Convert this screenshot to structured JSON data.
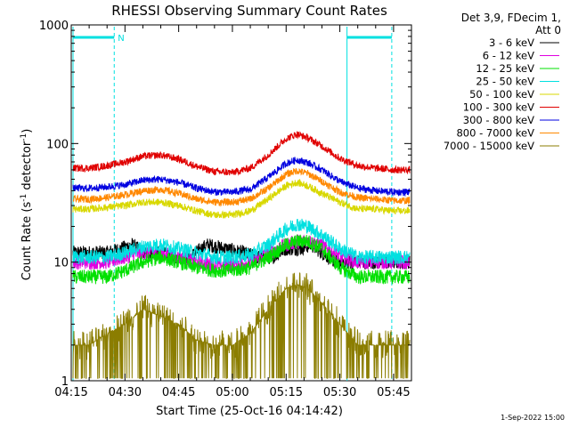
{
  "chart_data": {
    "type": "line",
    "title": "RHESSI Observing Summary Count Rates",
    "xlabel": "Start Time (25-Oct-16 04:14:42)",
    "ylabel": "Count Rate (s⁻¹ detector⁻¹)",
    "y_scale": "log",
    "ylim": [
      1,
      1000
    ],
    "xlim_minutes": [
      0,
      95
    ],
    "x_ticks": [
      {
        "label": "04:15",
        "minutes": 0
      },
      {
        "label": "04:30",
        "minutes": 15
      },
      {
        "label": "04:45",
        "minutes": 30
      },
      {
        "label": "05:00",
        "minutes": 45
      },
      {
        "label": "05:15",
        "minutes": 60
      },
      {
        "label": "05:30",
        "minutes": 75
      },
      {
        "label": "05:45",
        "minutes": 90
      }
    ],
    "y_ticks": [
      {
        "label": "1",
        "value": 1
      },
      {
        "label": "10",
        "value": 10
      },
      {
        "label": "100",
        "value": 100
      },
      {
        "label": "1000",
        "value": 1000
      }
    ],
    "info_lines": [
      "Det 3,9, FDecim 1,",
      "Att 0"
    ],
    "legend_position": "right",
    "series": [
      {
        "name": "3 - 6 keV",
        "color": "#000000",
        "x": [
          0,
          5,
          10,
          14,
          17,
          20,
          25,
          28,
          33,
          38,
          43,
          48,
          52,
          56,
          60,
          64,
          67,
          70,
          74,
          78,
          83,
          88,
          94
        ],
        "y": [
          12,
          12,
          12,
          13,
          14,
          12,
          12,
          11,
          11,
          14,
          13,
          12,
          11,
          11,
          13,
          13,
          14,
          12,
          10,
          10,
          10,
          10,
          10
        ]
      },
      {
        "name": "6 - 12 keV",
        "color": "#e000e0",
        "x": [
          0,
          5,
          10,
          15,
          20,
          25,
          30,
          35,
          40,
          45,
          50,
          55,
          60,
          63,
          66,
          70,
          75,
          80,
          85,
          90,
          94
        ],
        "y": [
          10,
          10,
          10,
          11,
          12,
          12,
          11,
          10,
          9.5,
          9.5,
          10,
          12,
          14,
          15,
          15,
          14,
          11,
          10,
          10,
          10,
          10
        ]
      },
      {
        "name": "12 - 25 keV",
        "color": "#00e000",
        "x": [
          0,
          5,
          10,
          15,
          20,
          25,
          30,
          35,
          40,
          45,
          50,
          55,
          60,
          63,
          66,
          70,
          75,
          80,
          85,
          90,
          94
        ],
        "y": [
          7.5,
          7.5,
          7.5,
          8.5,
          10,
          11,
          10,
          9,
          8.5,
          8.5,
          9,
          11,
          14,
          15,
          15,
          13,
          9,
          7.5,
          7.5,
          7.5,
          7.5
        ]
      },
      {
        "name": "25 - 50 keV",
        "color": "#00e0e0",
        "x": [
          0,
          5,
          10,
          15,
          20,
          25,
          30,
          35,
          40,
          45,
          50,
          55,
          60,
          63,
          66,
          70,
          75,
          80,
          85,
          90,
          94
        ],
        "y": [
          11,
          11,
          11,
          12,
          13.5,
          14,
          13,
          12,
          11,
          11,
          11.5,
          14,
          19,
          21,
          20,
          17,
          13,
          11,
          11,
          11,
          11
        ]
      },
      {
        "name": "50 - 100 keV",
        "color": "#d8d800",
        "x": [
          0,
          5,
          10,
          15,
          20,
          25,
          30,
          35,
          40,
          45,
          50,
          55,
          60,
          63,
          66,
          70,
          75,
          80,
          85,
          90,
          94
        ],
        "y": [
          28,
          28,
          29,
          30,
          32,
          32,
          30,
          27,
          25,
          25,
          27,
          34,
          44,
          47,
          44,
          38,
          32,
          28,
          28,
          27,
          27
        ]
      },
      {
        "name": "100 - 300 keV",
        "color": "#e00000",
        "x": [
          0,
          5,
          10,
          15,
          20,
          25,
          30,
          35,
          40,
          45,
          50,
          55,
          60,
          63,
          66,
          70,
          75,
          80,
          85,
          90,
          94
        ],
        "y": [
          62,
          62,
          65,
          70,
          78,
          80,
          74,
          64,
          58,
          57,
          62,
          80,
          110,
          120,
          112,
          95,
          75,
          65,
          62,
          60,
          60
        ]
      },
      {
        "name": "300 - 800 keV",
        "color": "#0000e0",
        "x": [
          0,
          5,
          10,
          15,
          20,
          25,
          30,
          35,
          40,
          45,
          50,
          55,
          60,
          63,
          66,
          70,
          75,
          80,
          85,
          90,
          94
        ],
        "y": [
          42,
          42,
          43,
          45,
          49,
          50,
          47,
          42,
          39,
          39,
          41,
          52,
          68,
          73,
          69,
          60,
          48,
          42,
          40,
          39,
          39
        ]
      },
      {
        "name": "800 - 7000 keV",
        "color": "#ff8800",
        "x": [
          0,
          5,
          10,
          15,
          20,
          25,
          30,
          35,
          40,
          45,
          50,
          55,
          60,
          63,
          66,
          70,
          75,
          80,
          85,
          90,
          94
        ],
        "y": [
          34,
          34,
          35,
          37,
          40,
          41,
          38,
          34,
          32,
          32,
          34,
          42,
          55,
          59,
          56,
          48,
          39,
          35,
          34,
          33,
          33
        ]
      },
      {
        "name": "7000 - 15000 keV",
        "color": "#8b7d00",
        "x": [
          0,
          5,
          10,
          15,
          20,
          25,
          30,
          35,
          40,
          45,
          50,
          55,
          60,
          63,
          66,
          70,
          75,
          80,
          85,
          90,
          94
        ],
        "y": [
          2,
          2,
          2.5,
          3,
          4,
          3.5,
          3,
          2.2,
          2,
          2,
          2.5,
          4,
          6,
          6.5,
          6,
          4.5,
          3,
          2,
          2,
          2,
          2
        ]
      }
    ],
    "shaded_markers": [
      {
        "label": "N",
        "start_minutes": 0.5,
        "end_minutes": 12.0,
        "color": "#00e0e0"
      },
      {
        "label": "",
        "start_minutes": 77.0,
        "end_minutes": 89.5,
        "color": "#00e0e0"
      }
    ],
    "vertical_lines_minutes": [
      0.5,
      12.0,
      77.0,
      89.5
    ]
  },
  "footer_date": "1-Sep-2022 15:00"
}
